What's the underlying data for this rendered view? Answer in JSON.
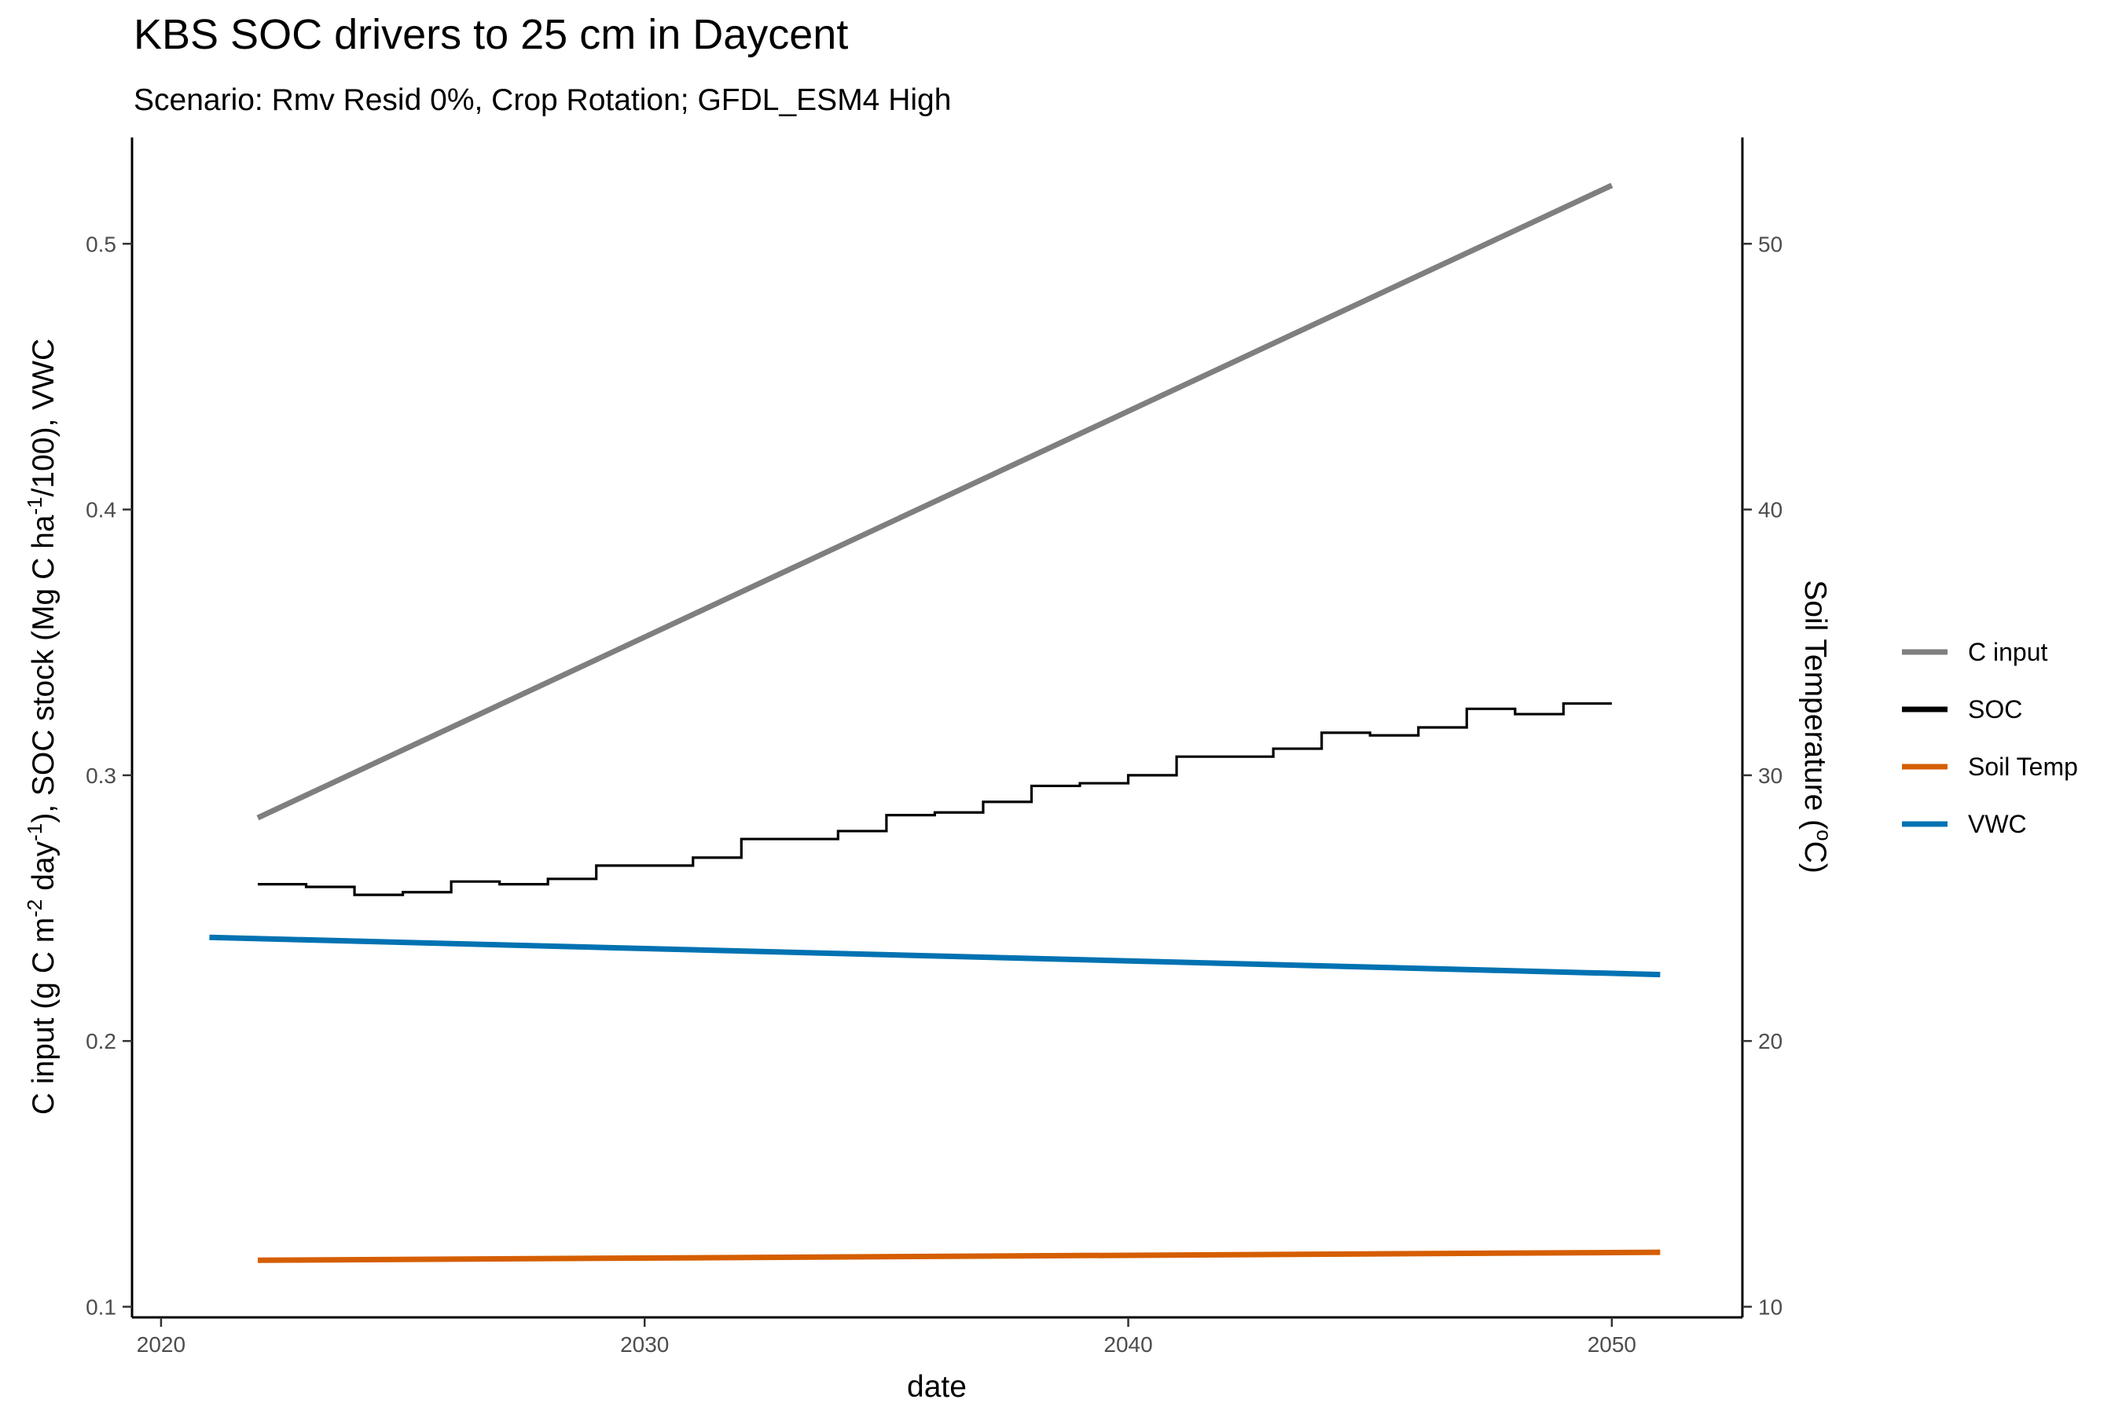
{
  "chart_data": {
    "type": "line",
    "title": "KBS SOC drivers to 25 cm in Daycent",
    "subtitle": "Scenario: Rmv Resid 0%, Crop Rotation; GFDL_ESM4 High",
    "xlabel": "date",
    "ylabel": "C input (g C m⁻² day⁻¹), SOC stock (Mg C ha⁻¹/100), VWC",
    "y2label": "Soil Temperature (°C)",
    "xlim": [
      2019.4,
      2052.7
    ],
    "ylim": [
      0.096,
      0.54
    ],
    "y2lim": [
      9.6,
      54
    ],
    "xticks": [
      "2020",
      "2030",
      "2040",
      "2050"
    ],
    "yticks": [
      "0.1",
      "0.2",
      "0.3",
      "0.4",
      "0.5"
    ],
    "y2ticks": [
      "10",
      "20",
      "30",
      "40",
      "50"
    ],
    "legend_position": "right",
    "grid": false,
    "series": [
      {
        "name": "C input",
        "color": "#7f7f7f",
        "axis": "left",
        "shape": "line",
        "x": [
          2022,
          2050
        ],
        "y": [
          0.284,
          0.522
        ]
      },
      {
        "name": "SOC",
        "color": "#000000",
        "axis": "left",
        "shape": "step",
        "x": [
          2022,
          2023,
          2024,
          2025,
          2026,
          2027,
          2028,
          2029,
          2030,
          2031,
          2032,
          2033,
          2034,
          2035,
          2036,
          2037,
          2038,
          2039,
          2040,
          2041,
          2042,
          2043,
          2044,
          2045,
          2046,
          2047,
          2048,
          2049,
          2050
        ],
        "y": [
          0.259,
          0.258,
          0.255,
          0.256,
          0.26,
          0.259,
          0.261,
          0.266,
          0.266,
          0.269,
          0.276,
          0.276,
          0.279,
          0.285,
          0.286,
          0.29,
          0.296,
          0.297,
          0.3,
          0.307,
          0.307,
          0.31,
          0.316,
          0.315,
          0.318,
          0.325,
          0.323,
          0.327,
          0.327
        ]
      },
      {
        "name": "Soil Temp",
        "color": "#d55e00",
        "axis": "right",
        "shape": "line",
        "x": [
          2022,
          2051
        ],
        "y": [
          11.75,
          12.05
        ]
      },
      {
        "name": "VWC",
        "color": "#0072b2",
        "axis": "left",
        "shape": "line",
        "x": [
          2021,
          2051
        ],
        "y": [
          0.239,
          0.225
        ]
      }
    ]
  }
}
